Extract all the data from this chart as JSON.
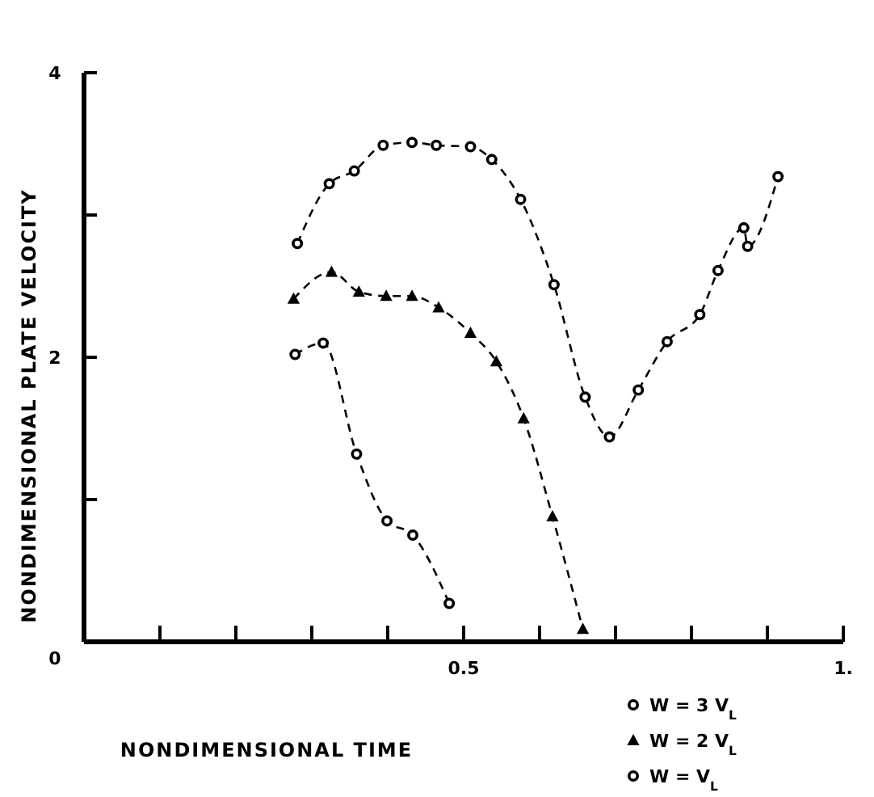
{
  "chart_data": {
    "type": "line",
    "xlabel": "NONDIMENSIONAL TIME",
    "ylabel": "NONDIMENSIONAL PLATE VELOCITY",
    "xlim": [
      0,
      1
    ],
    "ylim": [
      0,
      4
    ],
    "xticks": [
      {
        "value": 0.1,
        "label": null
      },
      {
        "value": 0.2,
        "label": null
      },
      {
        "value": 0.3,
        "label": null
      },
      {
        "value": 0.4,
        "label": null
      },
      {
        "value": 0.5,
        "label": "0.5"
      },
      {
        "value": 0.6,
        "label": null
      },
      {
        "value": 0.7,
        "label": null
      },
      {
        "value": 0.8,
        "label": null
      },
      {
        "value": 0.9,
        "label": null
      },
      {
        "value": 1,
        "label": "1."
      }
    ],
    "yticks": [
      {
        "value": 0,
        "label": "0"
      },
      {
        "value": 1,
        "label": null
      },
      2,
      {
        "value": 3,
        "label": null
      },
      4
    ],
    "grid": false,
    "legend": "bottom right",
    "line_style": "dashed",
    "series": [
      {
        "name": "W = 3 V$_{L}$",
        "color": "#000000",
        "marker": "circle",
        "x": [
          0.281,
          0.323,
          0.356,
          0.394,
          0.432,
          0.464,
          0.509,
          0.537,
          0.575,
          0.619,
          0.66,
          0.692,
          0.73,
          0.768,
          0.811,
          0.835,
          0.869,
          0.874,
          0.914
        ],
        "values": [
          2.8,
          3.22,
          3.31,
          3.49,
          3.51,
          3.49,
          3.48,
          3.39,
          3.11,
          2.51,
          1.72,
          1.44,
          1.77,
          2.11,
          2.3,
          2.61,
          2.91,
          2.78,
          3.27
        ]
      },
      {
        "name": "W = 2 V$_{L}$",
        "color": "#000000",
        "marker": "triangle",
        "x": [
          0.276,
          0.326,
          0.362,
          0.398,
          0.432,
          0.467,
          0.509,
          0.543,
          0.579,
          0.617,
          0.657
        ],
        "values": [
          2.41,
          2.6,
          2.46,
          2.43,
          2.43,
          2.35,
          2.17,
          1.97,
          1.57,
          0.88,
          0.09
        ]
      },
      {
        "name": "W = V$_{L}$",
        "color": "#000000",
        "marker": "circle",
        "x": [
          0.278,
          0.315,
          0.359,
          0.399,
          0.433,
          0.481
        ],
        "values": [
          2.02,
          2.1,
          1.32,
          0.85,
          0.75,
          0.27
        ]
      }
    ]
  }
}
